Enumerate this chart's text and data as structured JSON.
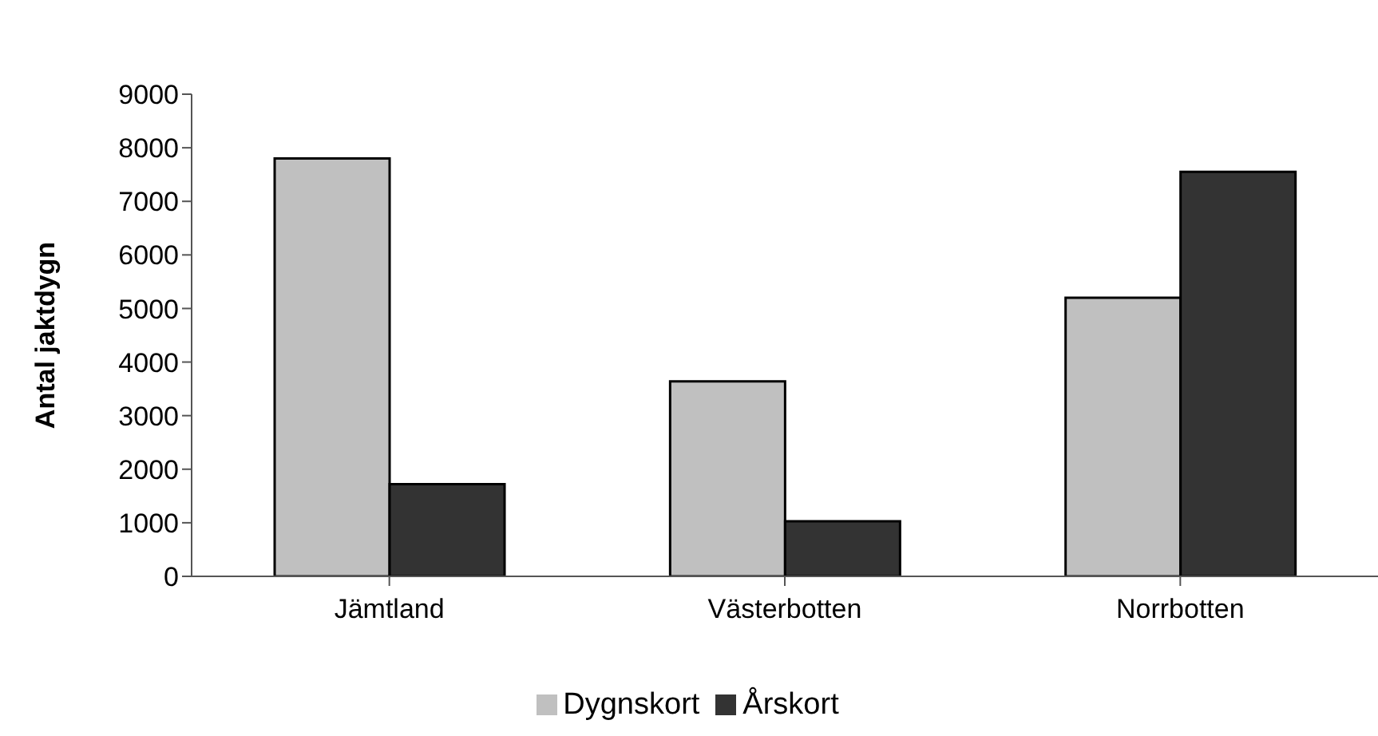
{
  "chart_data": {
    "type": "bar",
    "ylabel": "Antal jaktdygn",
    "categories": [
      "Jämtland",
      "Västerbotten",
      "Norrbotten"
    ],
    "series": [
      {
        "name": "Dygnskort",
        "color": "#c0c0c0",
        "values": [
          7800,
          3640,
          5200
        ]
      },
      {
        "name": "Årskort",
        "color": "#333333",
        "values": [
          1720,
          1030,
          7550
        ]
      }
    ],
    "ylim": [
      0,
      9000
    ],
    "yticks": [
      0,
      1000,
      2000,
      3000,
      4000,
      5000,
      6000,
      7000,
      8000,
      9000
    ],
    "grid": false,
    "legend": "bottom"
  }
}
